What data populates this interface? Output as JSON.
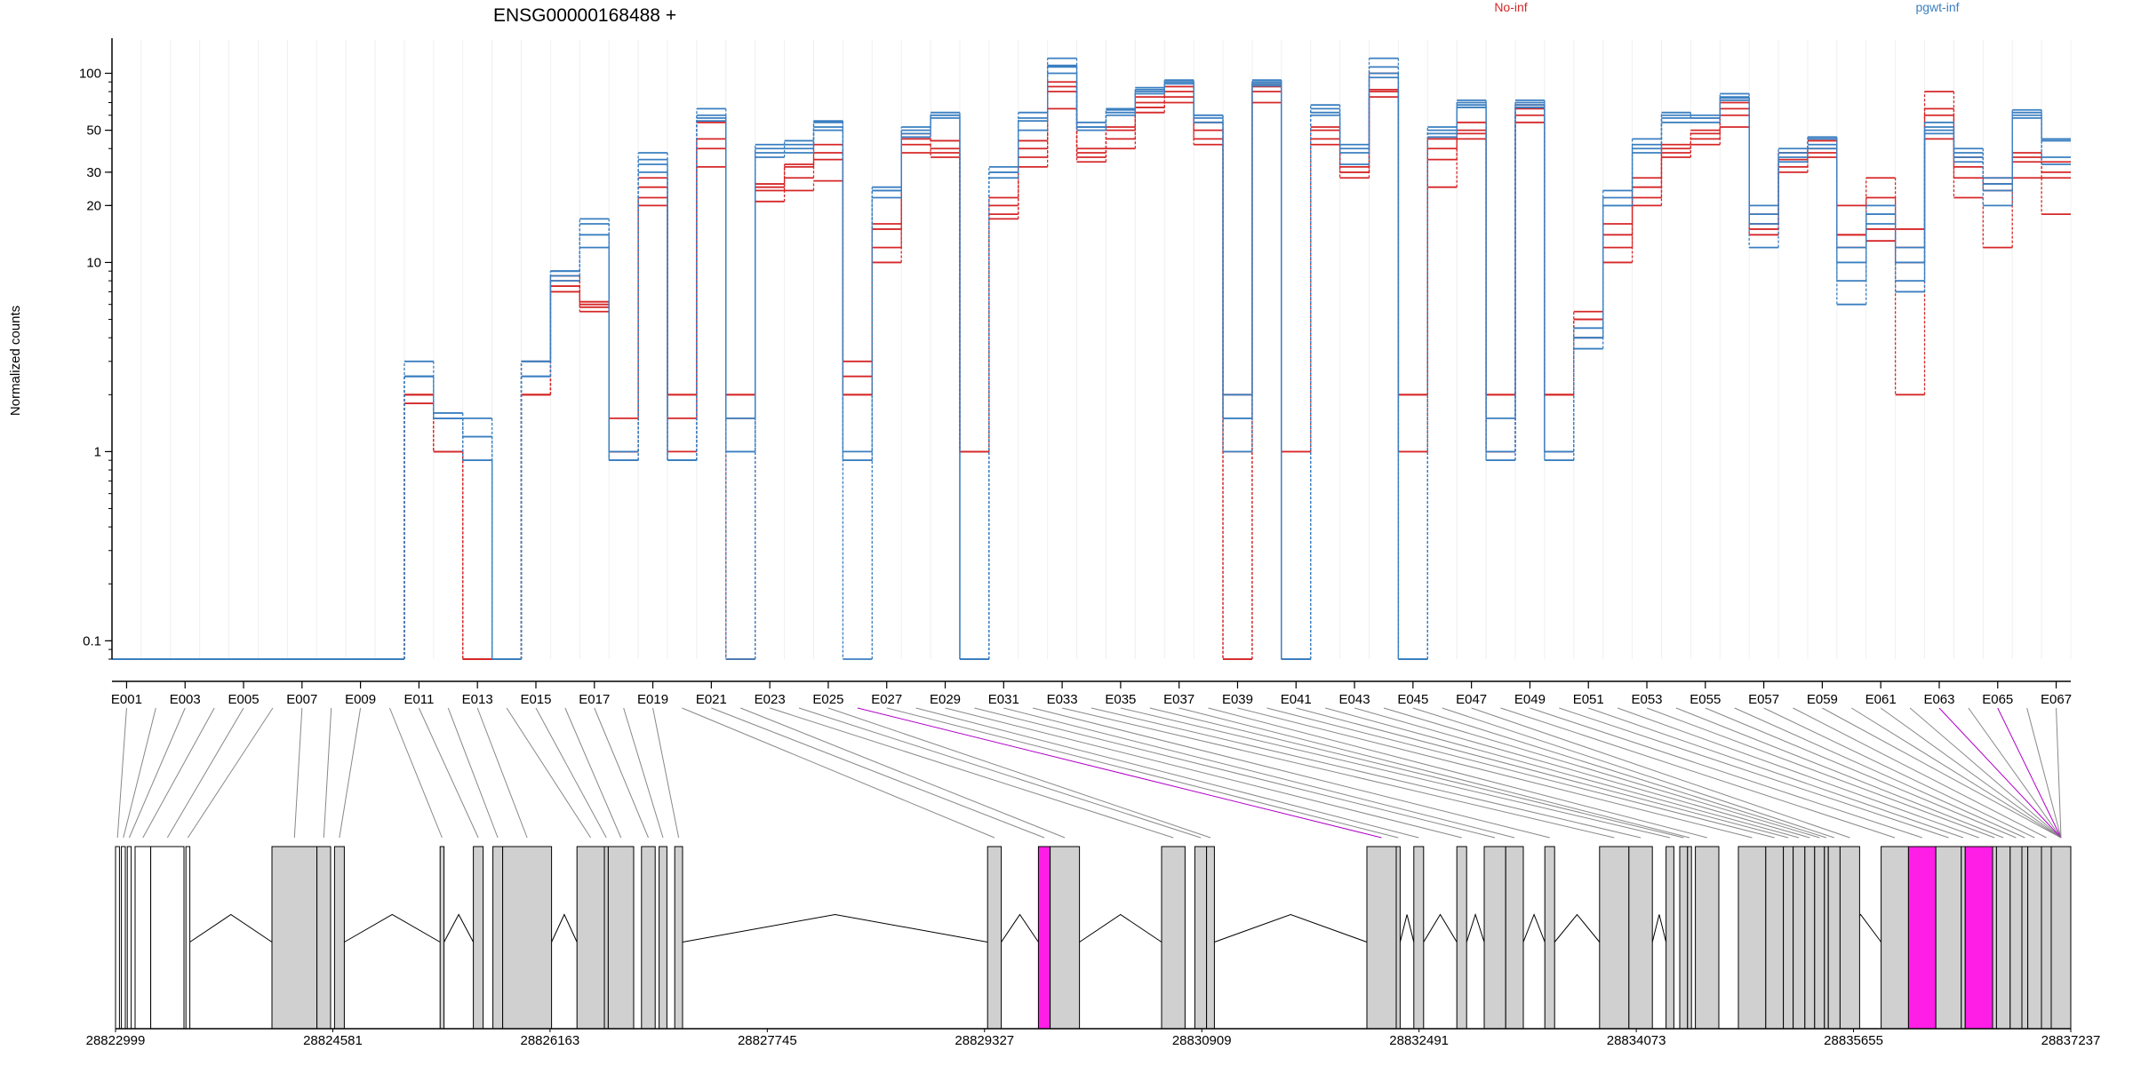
{
  "chart_data": {
    "type": "line",
    "title": "ENSG00000168488 +",
    "ylabel": "Normalized counts",
    "xlabel": "",
    "y_scale": "log",
    "ylim": [
      0.08,
      150
    ],
    "y_tick_labels": [
      "0.1",
      "1",
      "10",
      "20",
      "30",
      "50",
      "100"
    ],
    "y_tick_values": [
      0.1,
      1,
      10,
      20,
      30,
      50,
      100
    ],
    "legend": [
      {
        "label": "No-inf",
        "color": "#d62728"
      },
      {
        "label": "pgwt-inf",
        "color": "#3a7fc1"
      }
    ],
    "grid": false,
    "categories": [
      "E001",
      "E002",
      "E003",
      "E004",
      "E005",
      "E006",
      "E007",
      "E008",
      "E009",
      "E010",
      "E011",
      "E012",
      "E013",
      "E014",
      "E015",
      "E016",
      "E017",
      "E018",
      "E019",
      "E020",
      "E021",
      "E022",
      "E023",
      "E024",
      "E025",
      "E026",
      "E027",
      "E028",
      "E029",
      "E030",
      "E031",
      "E032",
      "E033",
      "E034",
      "E035",
      "E036",
      "E037",
      "E038",
      "E039",
      "E040",
      "E041",
      "E042",
      "E043",
      "E044",
      "E045",
      "E046",
      "E047",
      "E048",
      "E049",
      "E050",
      "E051",
      "E052",
      "E053",
      "E054",
      "E055",
      "E056",
      "E057",
      "E058",
      "E059",
      "E060",
      "E061",
      "E062",
      "E063",
      "E064",
      "E065",
      "E066",
      "E067"
    ],
    "x_tick_labels": [
      "E001",
      "E003",
      "E005",
      "E007",
      "E009",
      "E011",
      "E013",
      "E015",
      "E017",
      "E019",
      "E021",
      "E023",
      "E025",
      "E027",
      "E029",
      "E031",
      "E033",
      "E035",
      "E037",
      "E039",
      "E041",
      "E043",
      "E045",
      "E047",
      "E049",
      "E051",
      "E053",
      "E055",
      "E057",
      "E059",
      "E061",
      "E063",
      "E065",
      "E067"
    ],
    "series": [
      {
        "group": "No-inf",
        "color": "#d62728",
        "values": [
          0.08,
          0.08,
          0.08,
          0.08,
          0.08,
          0.08,
          0.08,
          0.08,
          0.08,
          0.08,
          2,
          1,
          0.08,
          0.08,
          2,
          8,
          6,
          1,
          20,
          2,
          40,
          2,
          25,
          32,
          38,
          3,
          15,
          45,
          40,
          1,
          20,
          40,
          85,
          38,
          50,
          70,
          75,
          50,
          2,
          85,
          1,
          50,
          30,
          80,
          2,
          40,
          50,
          2,
          68,
          2,
          5,
          14,
          25,
          40,
          50,
          65,
          16,
          35,
          40,
          14,
          15,
          15,
          60,
          32,
          26,
          38,
          34
        ]
      },
      {
        "group": "No-inf",
        "color": "#d62728",
        "values": [
          0.08,
          0.08,
          0.08,
          0.08,
          0.08,
          0.08,
          0.08,
          0.08,
          0.08,
          0.08,
          2,
          1,
          0.08,
          0.08,
          2,
          7,
          5.5,
          1,
          25,
          1,
          55,
          2,
          24,
          28,
          35,
          2,
          12,
          42,
          38,
          1,
          18,
          36,
          80,
          36,
          45,
          66,
          80,
          45,
          1,
          80,
          1,
          45,
          28,
          75,
          1,
          35,
          55,
          1,
          60,
          1,
          4,
          12,
          22,
          38,
          45,
          60,
          15,
          32,
          38,
          12,
          13,
          12,
          45,
          28,
          24,
          34,
          28
        ]
      },
      {
        "group": "No-inf",
        "color": "#d62728",
        "values": [
          0.08,
          0.08,
          0.08,
          0.08,
          0.08,
          0.08,
          0.08,
          0.08,
          0.08,
          0.08,
          2,
          1,
          0.08,
          0.08,
          3,
          7.5,
          5.8,
          1,
          28,
          2,
          32,
          1.5,
          21,
          24,
          27,
          2,
          10,
          38,
          36,
          1,
          17,
          32,
          65,
          34,
          40,
          62,
          70,
          42,
          0.08,
          70,
          0.08,
          42,
          32,
          82,
          1,
          25,
          45,
          1,
          55,
          2,
          5,
          10,
          20,
          36,
          42,
          52,
          18,
          30,
          36,
          20,
          28,
          2,
          80,
          22,
          12,
          28,
          18
        ]
      },
      {
        "group": "No-inf",
        "color": "#d62728",
        "values": [
          0.08,
          0.08,
          0.08,
          0.08,
          0.08,
          0.08,
          0.08,
          0.08,
          0.08,
          0.08,
          1.8,
          1,
          0.08,
          0.08,
          2,
          8.5,
          6.2,
          1.5,
          22,
          1.5,
          45,
          0.08,
          26,
          33,
          42,
          2.5,
          16,
          48,
          44,
          1,
          22,
          44,
          90,
          40,
          52,
          75,
          85,
          55,
          0.08,
          88,
          0.08,
          52,
          30,
          100,
          2,
          45,
          48,
          2,
          65,
          2,
          5.5,
          16,
          28,
          42,
          48,
          70,
          14,
          38,
          44,
          14,
          22,
          10,
          65,
          36,
          28,
          36,
          30
        ]
      },
      {
        "group": "pgwt-inf",
        "color": "#3a7fc1",
        "values": [
          0.08,
          0.08,
          0.08,
          0.08,
          0.08,
          0.08,
          0.08,
          0.08,
          0.08,
          0.08,
          3,
          1.5,
          0.9,
          0.08,
          3,
          9,
          17,
          0.9,
          33,
          0.9,
          60,
          1.5,
          40,
          40,
          56,
          0.9,
          25,
          50,
          62,
          0.08,
          30,
          62,
          110,
          55,
          65,
          82,
          90,
          60,
          1.5,
          90,
          0.08,
          68,
          40,
          100,
          0.08,
          50,
          70,
          1.5,
          70,
          1,
          4,
          22,
          42,
          55,
          55,
          75,
          20,
          38,
          46,
          6,
          18,
          7,
          52,
          38,
          24,
          62,
          44
        ]
      },
      {
        "group": "pgwt-inf",
        "color": "#3a7fc1",
        "values": [
          0.08,
          0.08,
          0.08,
          0.08,
          0.08,
          0.08,
          0.08,
          0.08,
          0.08,
          0.08,
          2.5,
          1.5,
          1.5,
          0.08,
          2.5,
          8,
          14,
          1,
          38,
          0.9,
          65,
          0.08,
          42,
          44,
          55,
          1,
          24,
          52,
          60,
          0.08,
          32,
          58,
          120,
          52,
          62,
          80,
          92,
          58,
          2,
          92,
          0.08,
          65,
          42,
          120,
          0.08,
          52,
          72,
          0.9,
          72,
          0.9,
          3.5,
          24,
          45,
          62,
          60,
          78,
          18,
          40,
          45,
          8,
          20,
          8,
          50,
          40,
          28,
          60,
          45
        ]
      },
      {
        "group": "pgwt-inf",
        "color": "#3a7fc1",
        "values": [
          0.08,
          0.08,
          0.08,
          0.08,
          0.08,
          0.08,
          0.08,
          0.08,
          0.08,
          0.08,
          2.5,
          1.6,
          1.2,
          0.08,
          2.5,
          8.5,
          12,
          0.9,
          35,
          0.9,
          58,
          1,
          36,
          38,
          50,
          0.08,
          22,
          48,
          58,
          0.08,
          28,
          56,
          100,
          50,
          60,
          78,
          88,
          55,
          1,
          86,
          0.08,
          60,
          33,
          95,
          0.08,
          48,
          68,
          1,
          68,
          1,
          4.5,
          20,
          40,
          58,
          58,
          72,
          12,
          36,
          42,
          10,
          16,
          10,
          55,
          34,
          20,
          58,
          33
        ]
      },
      {
        "group": "pgwt-inf",
        "color": "#3a7fc1",
        "values": [
          0.08,
          0.08,
          0.08,
          0.08,
          0.08,
          0.08,
          0.08,
          0.08,
          0.08,
          0.08,
          2.5,
          1.5,
          0.9,
          0.08,
          3,
          9,
          16,
          0.9,
          30,
          0.9,
          56,
          1,
          38,
          42,
          52,
          0.9,
          24,
          46,
          60,
          0.08,
          30,
          50,
          108,
          52,
          64,
          84,
          90,
          60,
          1.5,
          88,
          0.08,
          62,
          38,
          108,
          0.08,
          46,
          66,
          0.9,
          66,
          0.9,
          4,
          20,
          38,
          60,
          58,
          74,
          16,
          34,
          40,
          12,
          18,
          12,
          48,
          36,
          26,
          64,
          36
        ]
      }
    ],
    "exon_fill": [
      "#d0d0d0",
      "#d0d0d0",
      "#d0d0d0",
      "#d0d0d0",
      "#d0d0d0",
      "#d0d0d0",
      "#d0d0d0",
      "#d0d0d0",
      "#d0d0d0",
      "#d0d0d0",
      "#d0d0d0",
      "#d0d0d0",
      "#d0d0d0",
      "#d0d0d0",
      "#d0d0d0",
      "#d0d0d0",
      "#d0d0d0",
      "#d0d0d0",
      "#d0d0d0",
      "#d0d0d0",
      "#d0d0d0",
      "#d0d0d0",
      "#d0d0d0",
      "#d0d0d0",
      "#d0d0d0",
      "#ff00ff",
      "#d0d0d0",
      "#d0d0d0",
      "#d0d0d0",
      "#d0d0d0",
      "#d0d0d0",
      "#d0d0d0",
      "#d0d0d0",
      "#d0d0d0",
      "#d0d0d0",
      "#d0d0d0",
      "#d0d0d0",
      "#d0d0d0",
      "#d0d0d0",
      "#d0d0d0",
      "#d0d0d0",
      "#d0d0d0",
      "#d0d0d0",
      "#d0d0d0",
      "#d0d0d0",
      "#d0d0d0",
      "#d0d0d0",
      "#d0d0d0",
      "#d0d0d0",
      "#d0d0d0",
      "#d0d0d0",
      "#d0d0d0",
      "#d0d0d0",
      "#d0d0d0",
      "#d0d0d0",
      "#d0d0d0",
      "#d0d0d0",
      "#d0d0d0",
      "#d0d0d0",
      "#d0d0d0",
      "#d0d0d0",
      "#d0d0d0",
      "#ff00ff",
      "#d0d0d0",
      "#ff00ff",
      "#d0d0d0",
      "#d0d0d0"
    ],
    "genomic_axis": {
      "range": [
        28822999,
        28837237
      ],
      "tick_labels": [
        "28822999",
        "28824581",
        "28826163",
        "28827745",
        "28829327",
        "28830909",
        "28832491",
        "28834073",
        "28835655",
        "28837237"
      ],
      "tick_values": [
        28822999,
        28824581,
        28826163,
        28827745,
        28829327,
        28830909,
        28832491,
        28834073,
        28835655,
        28837237
      ]
    }
  }
}
